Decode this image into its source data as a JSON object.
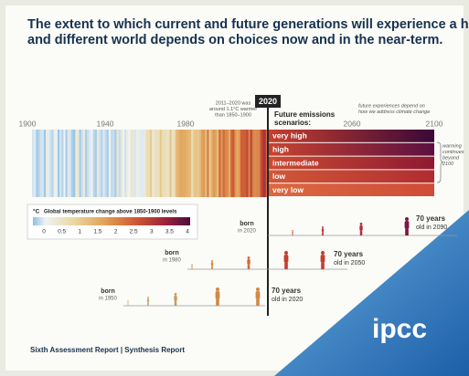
{
  "header": {
    "title": [
      "The extent to which current and future generations will experience a hotter",
      "and different world depends on choices now and in the near-term."
    ]
  },
  "timeline": {
    "years": [
      1900,
      1940,
      1980,
      2020,
      2060,
      2100
    ]
  },
  "annotations": {
    "past": [
      "2011–2020 was",
      "around 1.1°C warmer",
      "than 1850–1900"
    ],
    "future": [
      "future experiences depend on",
      "how we address climate change"
    ],
    "scenarios_title": [
      "Future emissions",
      "scenarios:"
    ],
    "beyond": [
      "warming",
      "continues",
      "beyond",
      "2100"
    ]
  },
  "scenarios": [
    "very high",
    "high",
    "intermediate",
    "low",
    "very low"
  ],
  "legend": {
    "unit": "°C",
    "title": "Global temperature change above 1850-1900 levels",
    "ticks": [
      0,
      0.5,
      1,
      1.5,
      2,
      2.5,
      3,
      3.5,
      4
    ]
  },
  "cohorts": [
    {
      "born": "born",
      "year": "in 2020",
      "age": "70 years",
      "old": "old in 2090"
    },
    {
      "born": "born",
      "year": "in 1980",
      "age": "70 years",
      "old": "old in 2050"
    },
    {
      "born": "born",
      "year": "in 1950",
      "age": "70 years",
      "old": "old in 2020"
    }
  ],
  "footer": "Sixth Assessment Report | Synthesis Report",
  "logo": "ipcc"
}
